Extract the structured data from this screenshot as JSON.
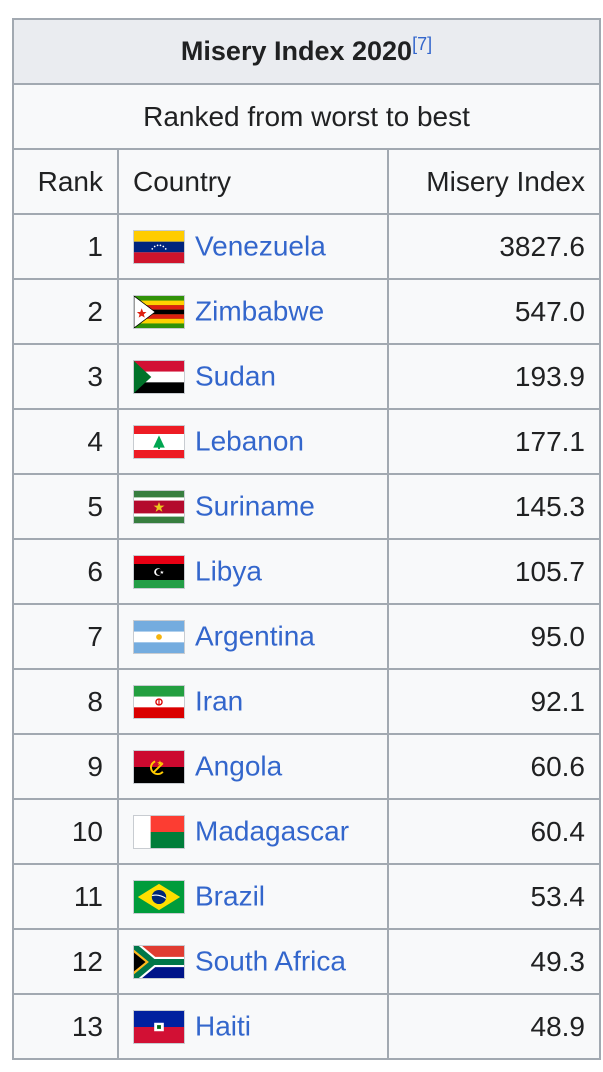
{
  "table": {
    "title": "Misery Index 2020",
    "title_ref": "[7]",
    "subtitle": "Ranked from worst to best",
    "headers": {
      "rank": "Rank",
      "country": "Country",
      "index": "Misery Index"
    },
    "rows": [
      {
        "rank": "1",
        "country": "Venezuela",
        "index": "3827.6",
        "flag": "venezuela-flag-icon"
      },
      {
        "rank": "2",
        "country": "Zimbabwe",
        "index": "547.0",
        "flag": "zimbabwe-flag-icon"
      },
      {
        "rank": "3",
        "country": "Sudan",
        "index": "193.9",
        "flag": "sudan-flag-icon"
      },
      {
        "rank": "4",
        "country": "Lebanon",
        "index": "177.1",
        "flag": "lebanon-flag-icon"
      },
      {
        "rank": "5",
        "country": "Suriname",
        "index": "145.3",
        "flag": "suriname-flag-icon"
      },
      {
        "rank": "6",
        "country": "Libya",
        "index": "105.7",
        "flag": "libya-flag-icon"
      },
      {
        "rank": "7",
        "country": "Argentina",
        "index": "95.0",
        "flag": "argentina-flag-icon"
      },
      {
        "rank": "8",
        "country": "Iran",
        "index": "92.1",
        "flag": "iran-flag-icon"
      },
      {
        "rank": "9",
        "country": "Angola",
        "index": "60.6",
        "flag": "angola-flag-icon"
      },
      {
        "rank": "10",
        "country": "Madagascar",
        "index": "60.4",
        "flag": "madagascar-flag-icon"
      },
      {
        "rank": "11",
        "country": "Brazil",
        "index": "53.4",
        "flag": "brazil-flag-icon"
      },
      {
        "rank": "12",
        "country": "South Africa",
        "index": "49.3",
        "flag": "south-africa-flag-icon"
      },
      {
        "rank": "13",
        "country": "Haiti",
        "index": "48.9",
        "flag": "haiti-flag-icon"
      }
    ]
  },
  "colors": {
    "link": "#3366cc",
    "border": "#a2a9b1",
    "header_bg": "#eaecf0",
    "cell_bg": "#f8f9fa"
  }
}
